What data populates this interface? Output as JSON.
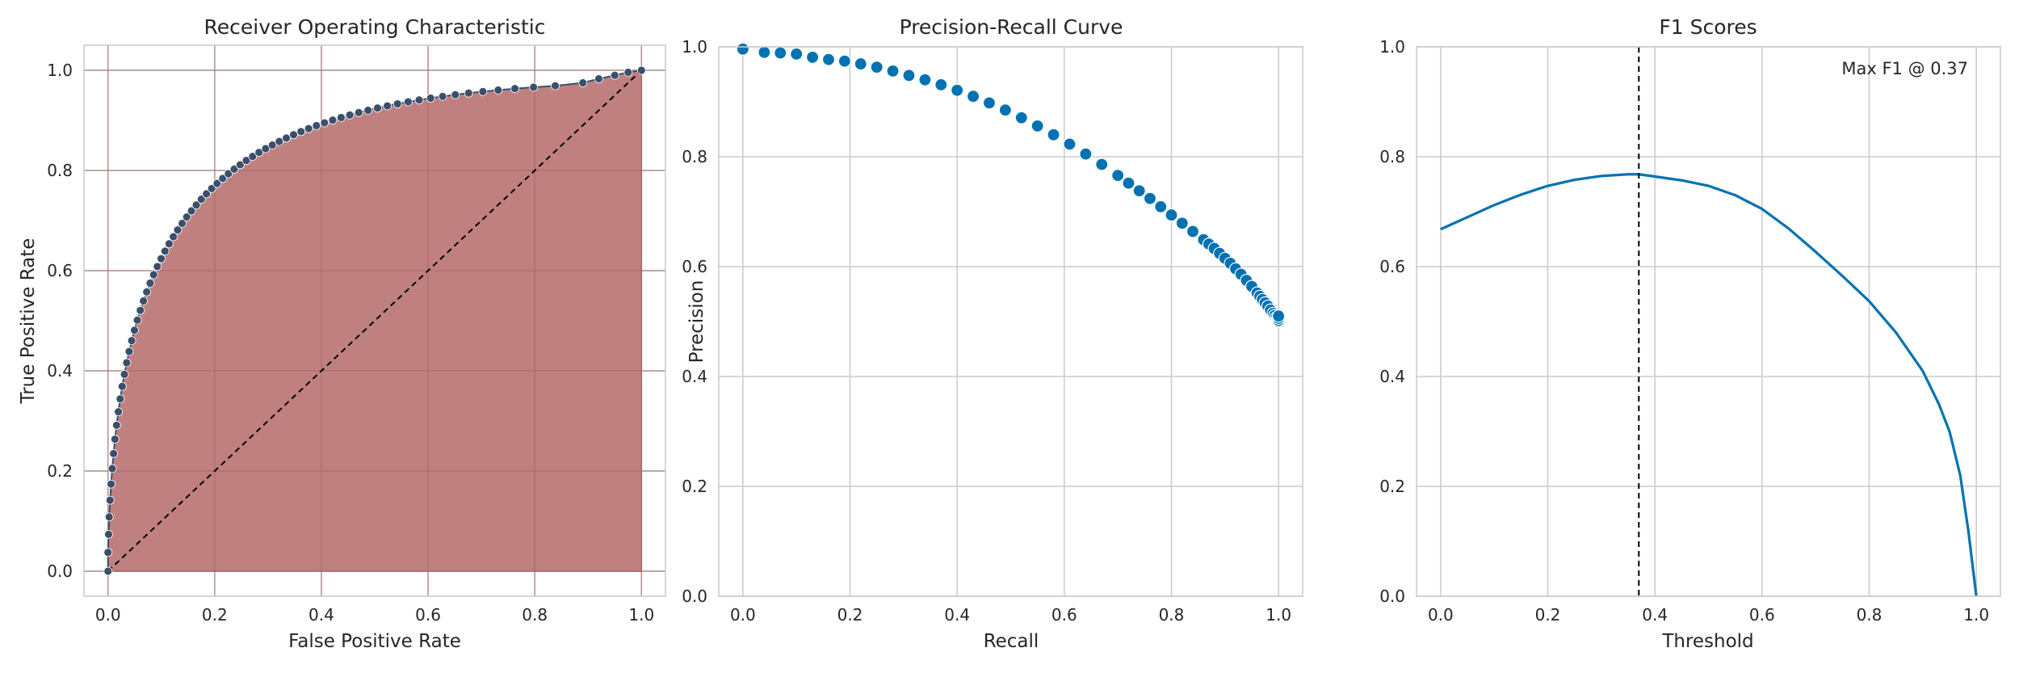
{
  "chart_data": [
    {
      "type": "area",
      "title": "Receiver Operating Characteristic",
      "xlabel": "False Positive Rate",
      "ylabel": "True Positive Rate",
      "xlim": [
        -0.045,
        1.045
      ],
      "ylim": [
        -0.05,
        1.05
      ],
      "xticks": [
        "0.0",
        "0.2",
        "0.4",
        "0.6",
        "0.8",
        "1.0"
      ],
      "yticks": [
        "0.0",
        "0.2",
        "0.4",
        "0.6",
        "0.8",
        "1.0"
      ],
      "grid": true,
      "fill_color": "#c08080",
      "marker_color": "#3b4f6b",
      "diagonal": {
        "x": [
          0,
          1
        ],
        "y": [
          0,
          1
        ],
        "style": "dashed",
        "color": "#000000"
      },
      "series": [
        {
          "x": [
            0.0,
            0.0,
            0.0011,
            0.0023,
            0.0039,
            0.0058,
            0.008,
            0.0104,
            0.0131,
            0.0161,
            0.0194,
            0.0229,
            0.0267,
            0.0308,
            0.0351,
            0.0397,
            0.0445,
            0.0496,
            0.055,
            0.0606,
            0.0665,
            0.0726,
            0.079,
            0.0856,
            0.0925,
            0.0996,
            0.107,
            0.1146,
            0.1225,
            0.1306,
            0.139,
            0.1476,
            0.1565,
            0.1656,
            0.175,
            0.1846,
            0.1945,
            0.2046,
            0.215,
            0.2257,
            0.2366,
            0.2478,
            0.2593,
            0.2711,
            0.2831,
            0.2955,
            0.3081,
            0.3211,
            0.3343,
            0.3479,
            0.3618,
            0.3761,
            0.3907,
            0.4058,
            0.4212,
            0.437,
            0.4533,
            0.4701,
            0.4874,
            0.5053,
            0.5237,
            0.5428,
            0.5627,
            0.5833,
            0.6048,
            0.6273,
            0.651,
            0.676,
            0.7027,
            0.7314,
            0.7627,
            0.7977,
            0.8384,
            0.8902,
            0.92,
            0.95,
            0.975,
            1.0
          ],
          "y": [
            0.0,
            0.0375,
            0.0736,
            0.1083,
            0.1417,
            0.1739,
            0.2049,
            0.2348,
            0.2636,
            0.2914,
            0.3182,
            0.344,
            0.369,
            0.393,
            0.4162,
            0.4386,
            0.4603,
            0.4811,
            0.5013,
            0.5207,
            0.5395,
            0.5576,
            0.5751,
            0.5919,
            0.6082,
            0.6239,
            0.639,
            0.6536,
            0.6677,
            0.6813,
            0.6944,
            0.7071,
            0.7193,
            0.7311,
            0.7425,
            0.7534,
            0.764,
            0.7742,
            0.784,
            0.7935,
            0.8026,
            0.8114,
            0.8199,
            0.8281,
            0.836,
            0.8436,
            0.8509,
            0.8579,
            0.8647,
            0.8713,
            0.8776,
            0.8836,
            0.8895,
            0.8951,
            0.9005,
            0.9057,
            0.9107,
            0.9155,
            0.9202,
            0.9246,
            0.9289,
            0.933,
            0.9369,
            0.9407,
            0.9443,
            0.9478,
            0.9512,
            0.9544,
            0.9575,
            0.9605,
            0.9634,
            0.9662,
            0.969,
            0.975,
            0.983,
            0.99,
            0.996,
            1.0
          ]
        }
      ]
    },
    {
      "type": "scatter",
      "title": "Precision-Recall Curve",
      "xlabel": "Recall",
      "ylabel": "Precision",
      "xlim": [
        -0.045,
        1.045
      ],
      "ylim": [
        0.0,
        1.0
      ],
      "xticks": [
        "0.0",
        "0.2",
        "0.4",
        "0.6",
        "0.8",
        "1.0"
      ],
      "yticks": [
        "0.0",
        "0.2",
        "0.4",
        "0.6",
        "0.8",
        "1.0"
      ],
      "grid": true,
      "marker_color": "#0072b2",
      "series": [
        {
          "x": [
            0.0,
            0.04,
            0.07,
            0.1,
            0.13,
            0.16,
            0.19,
            0.22,
            0.25,
            0.28,
            0.31,
            0.34,
            0.37,
            0.4,
            0.43,
            0.46,
            0.49,
            0.52,
            0.55,
            0.58,
            0.61,
            0.64,
            0.67,
            0.7,
            0.72,
            0.74,
            0.76,
            0.78,
            0.8,
            0.82,
            0.84,
            0.86,
            0.87,
            0.88,
            0.89,
            0.9,
            0.91,
            0.92,
            0.93,
            0.94,
            0.95,
            0.96,
            0.965,
            0.97,
            0.975,
            0.98,
            0.985,
            0.99,
            0.993,
            0.996,
            0.998,
            1.0,
            1.0,
            1.0,
            1.0
          ],
          "y": [
            0.996,
            0.99,
            0.989,
            0.987,
            0.981,
            0.977,
            0.974,
            0.969,
            0.963,
            0.956,
            0.948,
            0.94,
            0.931,
            0.921,
            0.91,
            0.898,
            0.885,
            0.871,
            0.856,
            0.84,
            0.823,
            0.805,
            0.786,
            0.766,
            0.752,
            0.738,
            0.724,
            0.709,
            0.694,
            0.679,
            0.664,
            0.649,
            0.641,
            0.633,
            0.624,
            0.615,
            0.606,
            0.596,
            0.586,
            0.575,
            0.564,
            0.552,
            0.546,
            0.54,
            0.534,
            0.528,
            0.521,
            0.515,
            0.511,
            0.507,
            0.504,
            0.5,
            0.502,
            0.506,
            0.51
          ]
        }
      ]
    },
    {
      "type": "line",
      "title": "F1 Scores",
      "xlabel": "Threshold",
      "ylabel": "",
      "xlim": [
        -0.045,
        1.045
      ],
      "ylim": [
        0.0,
        1.0
      ],
      "xticks": [
        "0.0",
        "0.2",
        "0.4",
        "0.6",
        "0.8",
        "1.0"
      ],
      "yticks": [
        "0.0",
        "0.2",
        "0.4",
        "0.6",
        "0.8",
        "1.0"
      ],
      "grid": true,
      "line_color": "#0072b2",
      "annotation": "Max F1 @ 0.37",
      "vline": {
        "x": 0.37,
        "style": "dashed",
        "color": "#000000"
      },
      "series": [
        {
          "x": [
            0.0,
            0.05,
            0.1,
            0.15,
            0.2,
            0.25,
            0.3,
            0.35,
            0.37,
            0.4,
            0.45,
            0.5,
            0.55,
            0.6,
            0.65,
            0.7,
            0.75,
            0.8,
            0.85,
            0.9,
            0.93,
            0.95,
            0.97,
            0.985,
            1.0
          ],
          "y": [
            0.668,
            0.69,
            0.712,
            0.731,
            0.747,
            0.758,
            0.765,
            0.768,
            0.768,
            0.764,
            0.757,
            0.747,
            0.73,
            0.705,
            0.669,
            0.627,
            0.583,
            0.537,
            0.48,
            0.41,
            0.35,
            0.3,
            0.22,
            0.12,
            0.0
          ]
        }
      ]
    }
  ]
}
